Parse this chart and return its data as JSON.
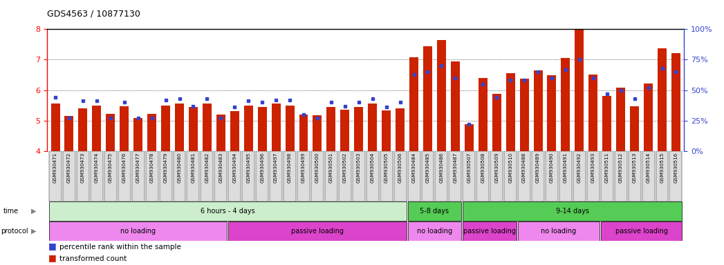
{
  "title": "GDS4563 / 10877130",
  "samples": [
    "GSM930471",
    "GSM930472",
    "GSM930473",
    "GSM930474",
    "GSM930475",
    "GSM930476",
    "GSM930477",
    "GSM930478",
    "GSM930479",
    "GSM930480",
    "GSM930481",
    "GSM930482",
    "GSM930483",
    "GSM930494",
    "GSM930495",
    "GSM930496",
    "GSM930497",
    "GSM930498",
    "GSM930499",
    "GSM930500",
    "GSM930501",
    "GSM930502",
    "GSM930503",
    "GSM930504",
    "GSM930505",
    "GSM930506",
    "GSM930484",
    "GSM930485",
    "GSM930486",
    "GSM930487",
    "GSM930507",
    "GSM930508",
    "GSM930509",
    "GSM930510",
    "GSM930488",
    "GSM930489",
    "GSM930490",
    "GSM930491",
    "GSM930492",
    "GSM930493",
    "GSM930511",
    "GSM930512",
    "GSM930513",
    "GSM930514",
    "GSM930515",
    "GSM930516"
  ],
  "red_values": [
    5.55,
    5.15,
    5.4,
    5.5,
    5.22,
    5.48,
    5.08,
    5.22,
    5.5,
    5.55,
    5.45,
    5.55,
    5.2,
    5.32,
    5.5,
    5.45,
    5.55,
    5.5,
    5.2,
    5.18,
    5.45,
    5.35,
    5.45,
    5.55,
    5.33,
    5.4,
    7.08,
    7.45,
    7.65,
    6.95,
    4.88,
    6.4,
    5.88,
    6.55,
    6.38,
    6.65,
    6.48,
    7.05,
    8.0,
    6.5,
    5.82,
    6.08,
    5.48,
    6.22,
    7.38,
    7.22
  ],
  "blue_values": [
    44,
    27,
    41,
    41,
    27,
    40,
    27,
    27,
    42,
    43,
    37,
    43,
    27,
    36,
    41,
    40,
    42,
    42,
    30,
    27,
    40,
    37,
    40,
    43,
    36,
    40,
    63,
    65,
    70,
    60,
    22,
    55,
    44,
    58,
    58,
    65,
    60,
    67,
    75,
    60,
    47,
    50,
    43,
    52,
    68,
    65
  ],
  "ylim_left": [
    4.0,
    8.0
  ],
  "ylim_right": [
    0,
    100
  ],
  "yticks_left": [
    4,
    5,
    6,
    7,
    8
  ],
  "yticks_right": [
    0,
    25,
    50,
    75,
    100
  ],
  "bar_color": "#CC2200",
  "blue_color": "#3344CC",
  "time_groups": [
    {
      "label": "6 hours - 4 days",
      "start": 0,
      "end": 25,
      "color": "#CCEECC"
    },
    {
      "label": "5-8 days",
      "start": 26,
      "end": 29,
      "color": "#55CC55"
    },
    {
      "label": "9-14 days",
      "start": 30,
      "end": 45,
      "color": "#55CC55"
    }
  ],
  "protocol_groups": [
    {
      "label": "no loading",
      "start": 0,
      "end": 12,
      "color": "#EE88EE"
    },
    {
      "label": "passive loading",
      "start": 13,
      "end": 25,
      "color": "#DD44CC"
    },
    {
      "label": "no loading",
      "start": 26,
      "end": 29,
      "color": "#EE88EE"
    },
    {
      "label": "passive loading",
      "start": 30,
      "end": 33,
      "color": "#DD44CC"
    },
    {
      "label": "no loading",
      "start": 34,
      "end": 39,
      "color": "#EE88EE"
    },
    {
      "label": "passive loading",
      "start": 40,
      "end": 45,
      "color": "#DD44CC"
    }
  ],
  "xtick_bg": "#DDDDDD",
  "grid_dotted_at": [
    5,
    6,
    7
  ]
}
